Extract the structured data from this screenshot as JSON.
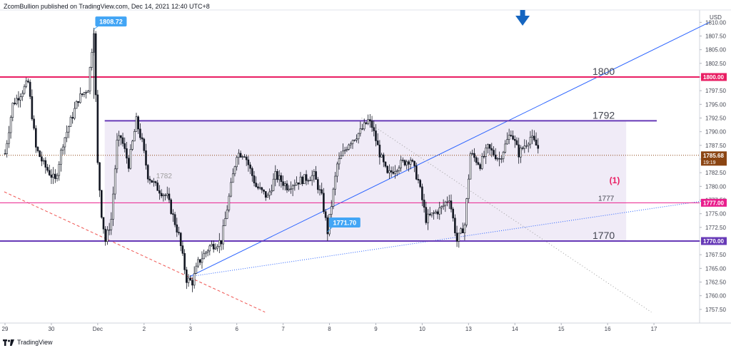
{
  "header": {
    "publisher": "ZcomBullion published on TradingView.com, Dec 14, 2021 12:40 UTC+8"
  },
  "footer": {
    "brand": "TradingView"
  },
  "colors": {
    "bull": "#ffffff",
    "candle_outline": "#131722",
    "level_1800": "#e91e63",
    "level_1792": "#673ab7",
    "level_1777": "#e91e8c",
    "level_1770": "#673ab7",
    "trendline": "#2962ff",
    "range_fill": "#ede7f6",
    "current_price_bg": "#8b4513",
    "callout_bg": "#42a5f5",
    "arrow": "#1565c0",
    "wave_label": "#e91e63"
  },
  "chart_data": {
    "type": "candlestick",
    "symbol_currency": "USD",
    "ylim": [
      1755.0,
      1812.0
    ],
    "y_ticks": [
      "1810.00",
      "1807.50",
      "1805.00",
      "1802.50",
      "1800.00",
      "1797.50",
      "1795.00",
      "1792.50",
      "1790.00",
      "1787.50",
      "1785.00",
      "1782.50",
      "1780.00",
      "1777.50",
      "1775.00",
      "1772.50",
      "1770.00",
      "1767.50",
      "1765.00",
      "1762.50",
      "1760.00",
      "1757.50"
    ],
    "x_ticks": [
      {
        "label": "29",
        "slot": 0
      },
      {
        "label": "30",
        "slot": 24
      },
      {
        "label": "Dec",
        "slot": 48
      },
      {
        "label": "2",
        "slot": 72
      },
      {
        "label": "3",
        "slot": 96
      },
      {
        "label": "6",
        "slot": 120
      },
      {
        "label": "7",
        "slot": 144
      },
      {
        "label": "8",
        "slot": 168
      },
      {
        "label": "9",
        "slot": 192
      },
      {
        "label": "10",
        "slot": 216
      },
      {
        "label": "13",
        "slot": 240
      },
      {
        "label": "14",
        "slot": 264
      },
      {
        "label": "15",
        "slot": 288
      },
      {
        "label": "16",
        "slot": 312
      },
      {
        "label": "17",
        "slot": 336
      }
    ],
    "x_slots_total": 360,
    "path_points": [
      [
        0,
        1786
      ],
      [
        4,
        1795
      ],
      [
        12,
        1799
      ],
      [
        16,
        1787
      ],
      [
        20,
        1784
      ],
      [
        26,
        1781
      ],
      [
        30,
        1788
      ],
      [
        38,
        1796
      ],
      [
        43,
        1798
      ],
      [
        46,
        1808.72
      ],
      [
        48,
        1784
      ],
      [
        50,
        1775
      ],
      [
        52,
        1770
      ],
      [
        55,
        1774
      ],
      [
        58,
        1788
      ],
      [
        60,
        1789
      ],
      [
        64,
        1784
      ],
      [
        68,
        1792
      ],
      [
        71,
        1788
      ],
      [
        74,
        1782
      ],
      [
        78,
        1780
      ],
      [
        84,
        1778
      ],
      [
        90,
        1771
      ],
      [
        94,
        1763
      ],
      [
        97,
        1762.5
      ],
      [
        100,
        1766
      ],
      [
        106,
        1769
      ],
      [
        112,
        1770
      ],
      [
        116,
        1778
      ],
      [
        120,
        1786
      ],
      [
        124,
        1786
      ],
      [
        130,
        1780
      ],
      [
        136,
        1778
      ],
      [
        140,
        1782
      ],
      [
        146,
        1780
      ],
      [
        152,
        1781
      ],
      [
        160,
        1782
      ],
      [
        164,
        1778
      ],
      [
        167,
        1771.7
      ],
      [
        172,
        1784
      ],
      [
        178,
        1788
      ],
      [
        184,
        1790
      ],
      [
        188,
        1792
      ],
      [
        190,
        1791
      ],
      [
        194,
        1786
      ],
      [
        198,
        1782
      ],
      [
        204,
        1784
      ],
      [
        210,
        1785
      ],
      [
        214,
        1781
      ],
      [
        218,
        1774
      ],
      [
        222,
        1775
      ],
      [
        226,
        1776
      ],
      [
        230,
        1778
      ],
      [
        234,
        1770
      ],
      [
        238,
        1773
      ],
      [
        241,
        1786
      ],
      [
        246,
        1784
      ],
      [
        250,
        1787
      ],
      [
        256,
        1785
      ],
      [
        262,
        1790
      ],
      [
        266,
        1786
      ],
      [
        272,
        1789
      ],
      [
        276,
        1787
      ]
    ],
    "horizontal_levels": [
      {
        "value": 1800.0,
        "label": "1800",
        "axis_label": "1800.00"
      },
      {
        "value": 1792.0,
        "label": "1792"
      },
      {
        "value": 1777.0,
        "label": "1777",
        "axis_label": "1777.00"
      },
      {
        "value": 1770.0,
        "label": "1770",
        "axis_label": "1770.00"
      }
    ],
    "range_box": {
      "from_slot": 52,
      "to_slot": 322,
      "top": 1792.0,
      "bottom": 1770.0,
      "label": "1782"
    },
    "current_price": {
      "value": "1785.68",
      "countdown": "19:19",
      "level": 1785.68
    },
    "callouts": [
      {
        "text": "1808.72",
        "slot": 46,
        "value": 1808.72
      },
      {
        "text": "1771.70",
        "slot": 167,
        "value": 1771.7
      }
    ],
    "wave_label": "(1)",
    "trendlines": [
      {
        "x1": 96,
        "y1": 1763.5,
        "x2": 365,
        "y2": 1810,
        "style": "solid"
      },
      {
        "x1": 96,
        "y1": 1763.5,
        "x2": 365,
        "y2": 1777.5,
        "style": "dotted"
      },
      {
        "x1": 0,
        "y1": 1779,
        "x2": 135,
        "y2": 1757,
        "style": "dashed-red"
      },
      {
        "x1": 185,
        "y1": 1792.5,
        "x2": 335,
        "y2": 1757,
        "style": "dotted-gray"
      }
    ],
    "down_arrow_slot": 268
  }
}
